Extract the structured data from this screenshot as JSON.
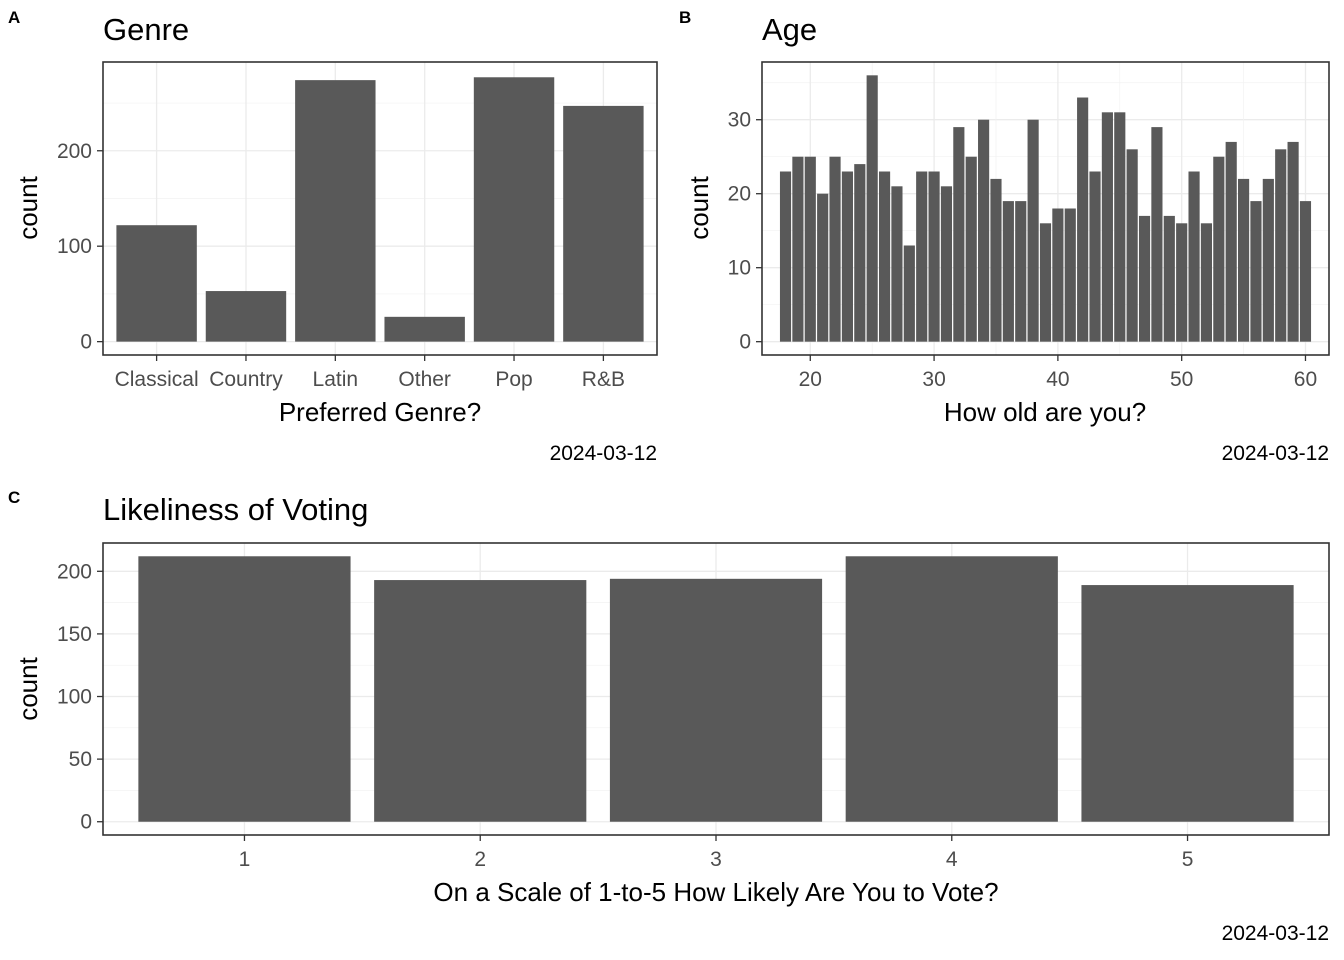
{
  "chart_data": [
    {
      "type": "bar",
      "tag": "A",
      "title": "Genre",
      "xlabel": "Preferred Genre?",
      "ylabel": "count",
      "caption": "2024-03-12",
      "categories": [
        "Classical",
        "Country",
        "Latin",
        "Other",
        "Pop",
        "R&B"
      ],
      "values": [
        122,
        53,
        274,
        26,
        277,
        247
      ],
      "ylim": [
        0,
        290
      ],
      "yticks": [
        0,
        100,
        200
      ],
      "grid": true,
      "bar_color": "#595959"
    },
    {
      "type": "bar",
      "tag": "B",
      "title": "Age",
      "xlabel": "How old are you?",
      "ylabel": "count",
      "caption": "2024-03-12",
      "x": [
        18,
        19,
        20,
        21,
        22,
        23,
        24,
        25,
        26,
        27,
        28,
        29,
        30,
        31,
        32,
        33,
        34,
        35,
        36,
        37,
        38,
        39,
        40,
        41,
        42,
        43,
        44,
        45,
        46,
        47,
        48,
        49,
        50,
        51,
        52,
        53,
        54,
        55,
        56,
        57,
        58,
        59,
        60
      ],
      "values": [
        23,
        25,
        25,
        20,
        25,
        23,
        24,
        36,
        23,
        21,
        13,
        23,
        23,
        21,
        29,
        25,
        30,
        22,
        19,
        19,
        30,
        16,
        18,
        18,
        33,
        23,
        31,
        31,
        26,
        17,
        29,
        17,
        16,
        23,
        16,
        25,
        27,
        22,
        19,
        22,
        26,
        27,
        19
      ],
      "xlim": [
        16.1,
        61.9
      ],
      "ylim": [
        -1.8,
        37.8
      ],
      "xticks": [
        20,
        30,
        40,
        50,
        60
      ],
      "yticks": [
        0,
        10,
        20,
        30
      ],
      "grid": true,
      "bar_color": "#595959"
    },
    {
      "type": "bar",
      "tag": "C",
      "title": "Likeliness of Voting",
      "xlabel": "On a Scale of 1-to-5 How Likely Are You to Vote?",
      "ylabel": "count",
      "caption": "2024-03-12",
      "categories": [
        "1",
        "2",
        "3",
        "4",
        "5"
      ],
      "values": [
        212,
        193,
        194,
        212,
        189
      ],
      "ylim": [
        -10.6,
        222.6
      ],
      "yticks": [
        0,
        50,
        100,
        150,
        200
      ],
      "grid": true,
      "bar_color": "#595959"
    }
  ]
}
